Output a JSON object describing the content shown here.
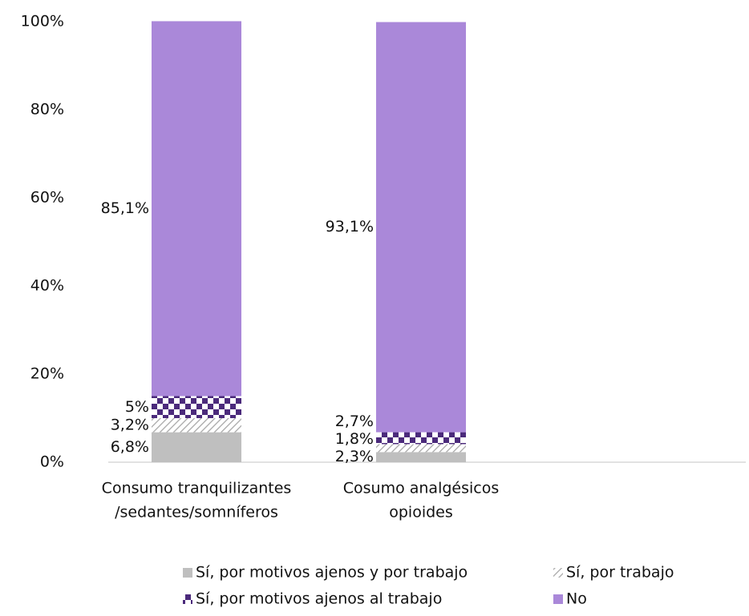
{
  "chart_data": {
    "type": "stacked_bar",
    "categories": [
      [
        "Consumo tranquilizantes",
        "/sedantes/somníferos"
      ],
      [
        "Cosumo analgésicos",
        "opioides"
      ]
    ],
    "series": [
      {
        "name": "Sí, por motivos ajenos y por trabajo",
        "color": "#bfbfbf",
        "pattern": "solid",
        "values": [
          6.8,
          2.3
        ],
        "value_labels": [
          "6,8%",
          "2,3%"
        ]
      },
      {
        "name": "Sí, por trabajo",
        "color": "#a6a6a6",
        "pattern": "hatch",
        "values": [
          3.2,
          1.8
        ],
        "value_labels": [
          "3,2%",
          "1,8%"
        ]
      },
      {
        "name": "Sí, por motivos ajenos al trabajo",
        "color": "#4b2a7b",
        "pattern": "check",
        "values": [
          5,
          2.7
        ],
        "value_labels": [
          "5%",
          "2,7%"
        ]
      },
      {
        "name": "No",
        "color": "#aa88d9",
        "pattern": "solid",
        "values": [
          85.1,
          93.1
        ],
        "value_labels": [
          "85,1%",
          "93,1%"
        ]
      }
    ],
    "ylim": [
      0,
      100
    ],
    "yticks": [
      {
        "value": 0,
        "label": "0%"
      },
      {
        "value": 20,
        "label": "20%"
      },
      {
        "value": 40,
        "label": "40%"
      },
      {
        "value": 60,
        "label": "60%"
      },
      {
        "value": 80,
        "label": "80%"
      },
      {
        "value": 100,
        "label": "100%"
      }
    ],
    "grid": false,
    "legend": "bottom"
  }
}
